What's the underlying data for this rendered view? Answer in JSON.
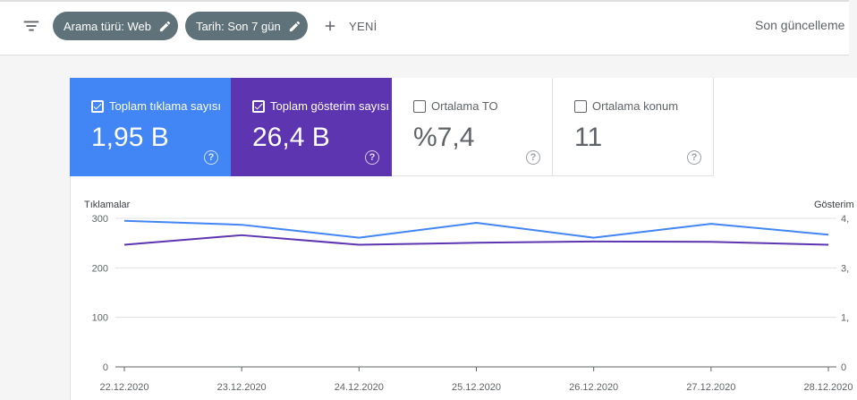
{
  "toolbar": {
    "filter_icon": "filter-list-icon",
    "chips": [
      {
        "label": "Arama türü: Web",
        "icon": "pencil-icon"
      },
      {
        "label": "Tarih: Son 7 gün",
        "icon": "pencil-icon"
      }
    ],
    "new_label": "YENİ",
    "last_updated": "Son güncelleme"
  },
  "metrics": [
    {
      "label": "Toplam tıklama sayısı",
      "value": "1,95 B",
      "checked": true,
      "color": "#4285f4"
    },
    {
      "label": "Toplam gösterim sayısı",
      "value": "26,4 B",
      "checked": true,
      "color": "#5e35b1"
    },
    {
      "label": "Ortalama TO",
      "value": "%7,4",
      "checked": false,
      "color": "#ffffff"
    },
    {
      "label": "Ortalama konum",
      "value": "11",
      "checked": false,
      "color": "#ffffff"
    }
  ],
  "chart_data": {
    "type": "line",
    "x": [
      "22.12.2020",
      "23.12.2020",
      "24.12.2020",
      "25.12.2020",
      "26.12.2020",
      "27.12.2020",
      "28.12.2020"
    ],
    "y_left_label": "Tıklamalar",
    "y_left_ticks": [
      "0",
      "100",
      "200",
      "300"
    ],
    "y_left_lim": [
      0,
      300
    ],
    "y_right_label": "Gösterim",
    "y_right_ticks": [
      "0",
      "1,",
      "3,",
      "4,"
    ],
    "y_right_lim": [
      0,
      4.5
    ],
    "series": [
      {
        "name": "Tıklamalar",
        "axis": "left",
        "color": "#4285f4",
        "values": [
          295,
          287,
          261,
          291,
          261,
          289,
          267
        ]
      },
      {
        "name": "Gösterim",
        "axis": "right",
        "color": "#5e35b1",
        "values": [
          3.7,
          3.99,
          3.7,
          3.76,
          3.8,
          3.79,
          3.7
        ]
      }
    ],
    "grid": true
  }
}
